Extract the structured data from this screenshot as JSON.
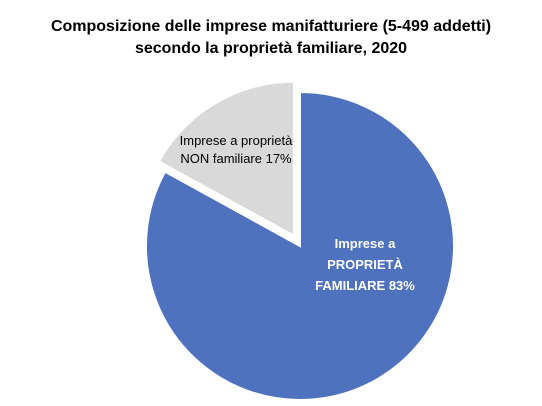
{
  "chart_data": {
    "type": "pie",
    "title": "Composizione delle imprese manifatturiere (5-499 addetti)",
    "subtitle": "secondo la proprietà familiare, 2020",
    "slices": [
      {
        "label_lines": [
          "Imprese a",
          "PROPRIETÀ",
          "FAMILIARE 83%"
        ],
        "value": 83,
        "color": "#4f72be",
        "label_color": "#ffffff",
        "exploded": false
      },
      {
        "label_lines": [
          "Imprese a proprietà",
          "NON familiare 17%"
        ],
        "value": 17,
        "color": "#d9d9d9",
        "label_color": "#000000",
        "exploded": true
      }
    ]
  }
}
